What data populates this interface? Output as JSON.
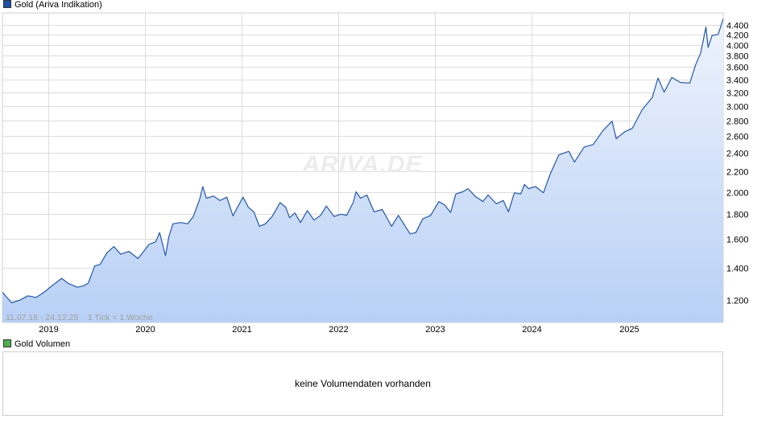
{
  "price_legend": {
    "label": "Gold (Ariva Indikation)",
    "color": "#1f4fa8"
  },
  "volume_legend": {
    "label": "Gold Volumen",
    "color": "#4caf50"
  },
  "volume_panel": {
    "message": "keine Volumendaten vorhanden"
  },
  "watermark": "ARIVA.DE",
  "info_text": "11.07.18 - 24.12.25    1 Tick = 1 Woche",
  "colors": {
    "line": "#2457a8",
    "fill_top": "#eef3fd",
    "fill_bottom": "#b8d0f5",
    "grid": "#dcdcdc"
  },
  "chart_data": {
    "type": "area",
    "title": "Gold (Ariva Indikation)",
    "xlabel": "",
    "ylabel": "",
    "yscale": "log",
    "ylim": [
      1080,
      4650
    ],
    "grid": true,
    "y_ticks": [
      1200,
      1400,
      1600,
      1800,
      2000,
      2200,
      2400,
      2600,
      2800,
      3000,
      3200,
      3400,
      3600,
      3800,
      4000,
      4200,
      4400
    ],
    "y_tick_labels": [
      "1.200",
      "1.400",
      "1.600",
      "1.800",
      "2.000",
      "2.200",
      "2.400",
      "2.600",
      "2.800",
      "3.000",
      "3.200",
      "3.400",
      "3.600",
      "3.800",
      "4.000",
      "4.200",
      "4.400"
    ],
    "x_tick_labels": [
      "2019",
      "2020",
      "2021",
      "2022",
      "2023",
      "2024",
      "2025"
    ],
    "x_range": [
      "2018-07-11",
      "2025-12-24"
    ],
    "series": [
      {
        "points": [
          [
            "2018-07-11",
            1245
          ],
          [
            "2018-08-15",
            1185
          ],
          [
            "2018-09-15",
            1200
          ],
          [
            "2018-10-15",
            1225
          ],
          [
            "2018-11-15",
            1215
          ],
          [
            "2018-12-15",
            1245
          ],
          [
            "2019-01-15",
            1285
          ],
          [
            "2019-02-20",
            1330
          ],
          [
            "2019-03-15",
            1300
          ],
          [
            "2019-04-20",
            1275
          ],
          [
            "2019-05-15",
            1285
          ],
          [
            "2019-05-31",
            1300
          ],
          [
            "2019-06-25",
            1410
          ],
          [
            "2019-07-15",
            1420
          ],
          [
            "2019-08-10",
            1500
          ],
          [
            "2019-09-05",
            1545
          ],
          [
            "2019-10-01",
            1490
          ],
          [
            "2019-11-01",
            1510
          ],
          [
            "2019-12-05",
            1460
          ],
          [
            "2019-12-31",
            1520
          ],
          [
            "2020-01-15",
            1560
          ],
          [
            "2020-02-10",
            1580
          ],
          [
            "2020-02-25",
            1650
          ],
          [
            "2020-03-18",
            1480
          ],
          [
            "2020-03-31",
            1620
          ],
          [
            "2020-04-15",
            1720
          ],
          [
            "2020-05-15",
            1730
          ],
          [
            "2020-06-10",
            1720
          ],
          [
            "2020-07-01",
            1780
          ],
          [
            "2020-07-25",
            1930
          ],
          [
            "2020-08-06",
            2050
          ],
          [
            "2020-08-20",
            1940
          ],
          [
            "2020-09-15",
            1960
          ],
          [
            "2020-10-10",
            1920
          ],
          [
            "2020-11-05",
            1950
          ],
          [
            "2020-11-28",
            1785
          ],
          [
            "2020-12-15",
            1860
          ],
          [
            "2021-01-05",
            1950
          ],
          [
            "2021-01-25",
            1860
          ],
          [
            "2021-02-15",
            1820
          ],
          [
            "2021-03-08",
            1700
          ],
          [
            "2021-03-31",
            1720
          ],
          [
            "2021-04-25",
            1780
          ],
          [
            "2021-05-25",
            1900
          ],
          [
            "2021-06-15",
            1860
          ],
          [
            "2021-06-30",
            1770
          ],
          [
            "2021-07-20",
            1810
          ],
          [
            "2021-08-10",
            1730
          ],
          [
            "2021-09-05",
            1830
          ],
          [
            "2021-09-30",
            1750
          ],
          [
            "2021-10-25",
            1790
          ],
          [
            "2021-11-16",
            1870
          ],
          [
            "2021-12-15",
            1780
          ],
          [
            "2022-01-10",
            1800
          ],
          [
            "2022-01-31",
            1790
          ],
          [
            "2022-02-25",
            1900
          ],
          [
            "2022-03-08",
            2000
          ],
          [
            "2022-03-25",
            1940
          ],
          [
            "2022-04-18",
            1970
          ],
          [
            "2022-05-15",
            1820
          ],
          [
            "2022-06-15",
            1840
          ],
          [
            "2022-07-20",
            1700
          ],
          [
            "2022-08-15",
            1790
          ],
          [
            "2022-09-28",
            1640
          ],
          [
            "2022-10-20",
            1650
          ],
          [
            "2022-11-15",
            1760
          ],
          [
            "2022-12-15",
            1790
          ],
          [
            "2023-01-15",
            1910
          ],
          [
            "2023-02-05",
            1880
          ],
          [
            "2023-02-28",
            1815
          ],
          [
            "2023-03-20",
            1980
          ],
          [
            "2023-04-15",
            2000
          ],
          [
            "2023-05-05",
            2030
          ],
          [
            "2023-05-31",
            1960
          ],
          [
            "2023-06-30",
            1910
          ],
          [
            "2023-07-20",
            1970
          ],
          [
            "2023-08-20",
            1890
          ],
          [
            "2023-09-15",
            1920
          ],
          [
            "2023-10-05",
            1820
          ],
          [
            "2023-10-27",
            1990
          ],
          [
            "2023-11-20",
            1980
          ],
          [
            "2023-12-04",
            2070
          ],
          [
            "2023-12-20",
            2030
          ],
          [
            "2024-01-15",
            2050
          ],
          [
            "2024-02-14",
            1990
          ],
          [
            "2024-03-10",
            2170
          ],
          [
            "2024-04-12",
            2380
          ],
          [
            "2024-05-20",
            2420
          ],
          [
            "2024-06-10",
            2300
          ],
          [
            "2024-07-17",
            2470
          ],
          [
            "2024-08-20",
            2500
          ],
          [
            "2024-09-26",
            2670
          ],
          [
            "2024-10-30",
            2790
          ],
          [
            "2024-11-15",
            2570
          ],
          [
            "2024-12-15",
            2650
          ],
          [
            "2025-01-15",
            2700
          ],
          [
            "2025-02-20",
            2940
          ],
          [
            "2025-03-31",
            3120
          ],
          [
            "2025-04-22",
            3420
          ],
          [
            "2025-05-15",
            3200
          ],
          [
            "2025-06-13",
            3430
          ],
          [
            "2025-07-15",
            3350
          ],
          [
            "2025-08-20",
            3340
          ],
          [
            "2025-09-10",
            3630
          ],
          [
            "2025-09-30",
            3850
          ],
          [
            "2025-10-20",
            4350
          ],
          [
            "2025-10-28",
            3950
          ],
          [
            "2025-11-12",
            4180
          ],
          [
            "2025-12-05",
            4200
          ],
          [
            "2025-12-24",
            4520
          ]
        ]
      }
    ]
  }
}
